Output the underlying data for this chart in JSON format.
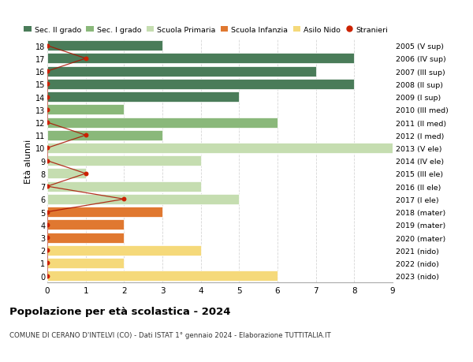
{
  "ages": [
    18,
    17,
    16,
    15,
    14,
    13,
    12,
    11,
    10,
    9,
    8,
    7,
    6,
    5,
    4,
    3,
    2,
    1,
    0
  ],
  "years": [
    "2005 (V sup)",
    "2006 (IV sup)",
    "2007 (III sup)",
    "2008 (II sup)",
    "2009 (I sup)",
    "2010 (III med)",
    "2011 (II med)",
    "2012 (I med)",
    "2013 (V ele)",
    "2014 (IV ele)",
    "2015 (III ele)",
    "2016 (II ele)",
    "2017 (I ele)",
    "2018 (mater)",
    "2019 (mater)",
    "2020 (mater)",
    "2021 (nido)",
    "2022 (nido)",
    "2023 (nido)"
  ],
  "bar_values": [
    3,
    8,
    7,
    8,
    5,
    2,
    6,
    3,
    9,
    4,
    1,
    4,
    5,
    3,
    2,
    2,
    4,
    2,
    6
  ],
  "bar_colors": [
    "#4a7c59",
    "#4a7c59",
    "#4a7c59",
    "#4a7c59",
    "#4a7c59",
    "#8ab87a",
    "#8ab87a",
    "#8ab87a",
    "#c5ddb0",
    "#c5ddb0",
    "#c5ddb0",
    "#c5ddb0",
    "#c5ddb0",
    "#e07830",
    "#e07830",
    "#e07830",
    "#f5d97a",
    "#f5d97a",
    "#f5d97a"
  ],
  "stranieri_values": [
    0,
    1,
    0,
    0,
    0,
    0,
    0,
    1,
    0,
    0,
    1,
    0,
    2,
    0,
    0,
    0,
    0,
    0,
    0
  ],
  "title": "Popolazione per età scolastica - 2024",
  "subtitle": "COMUNE DI CERANO D'INTELVI (CO) - Dati ISTAT 1° gennaio 2024 - Elaborazione TUTTITALIA.IT",
  "xlabel_main": "Età alunni",
  "xlim": [
    0,
    9
  ],
  "legend_labels": [
    "Sec. II grado",
    "Sec. I grado",
    "Scuola Primaria",
    "Scuola Infanzia",
    "Asilo Nido",
    "Stranieri"
  ],
  "legend_colors": [
    "#4a7c59",
    "#8ab87a",
    "#c5ddb0",
    "#e07830",
    "#f5d97a",
    "#cc2200"
  ],
  "bg_color": "#ffffff",
  "grid_color": "#cccccc"
}
